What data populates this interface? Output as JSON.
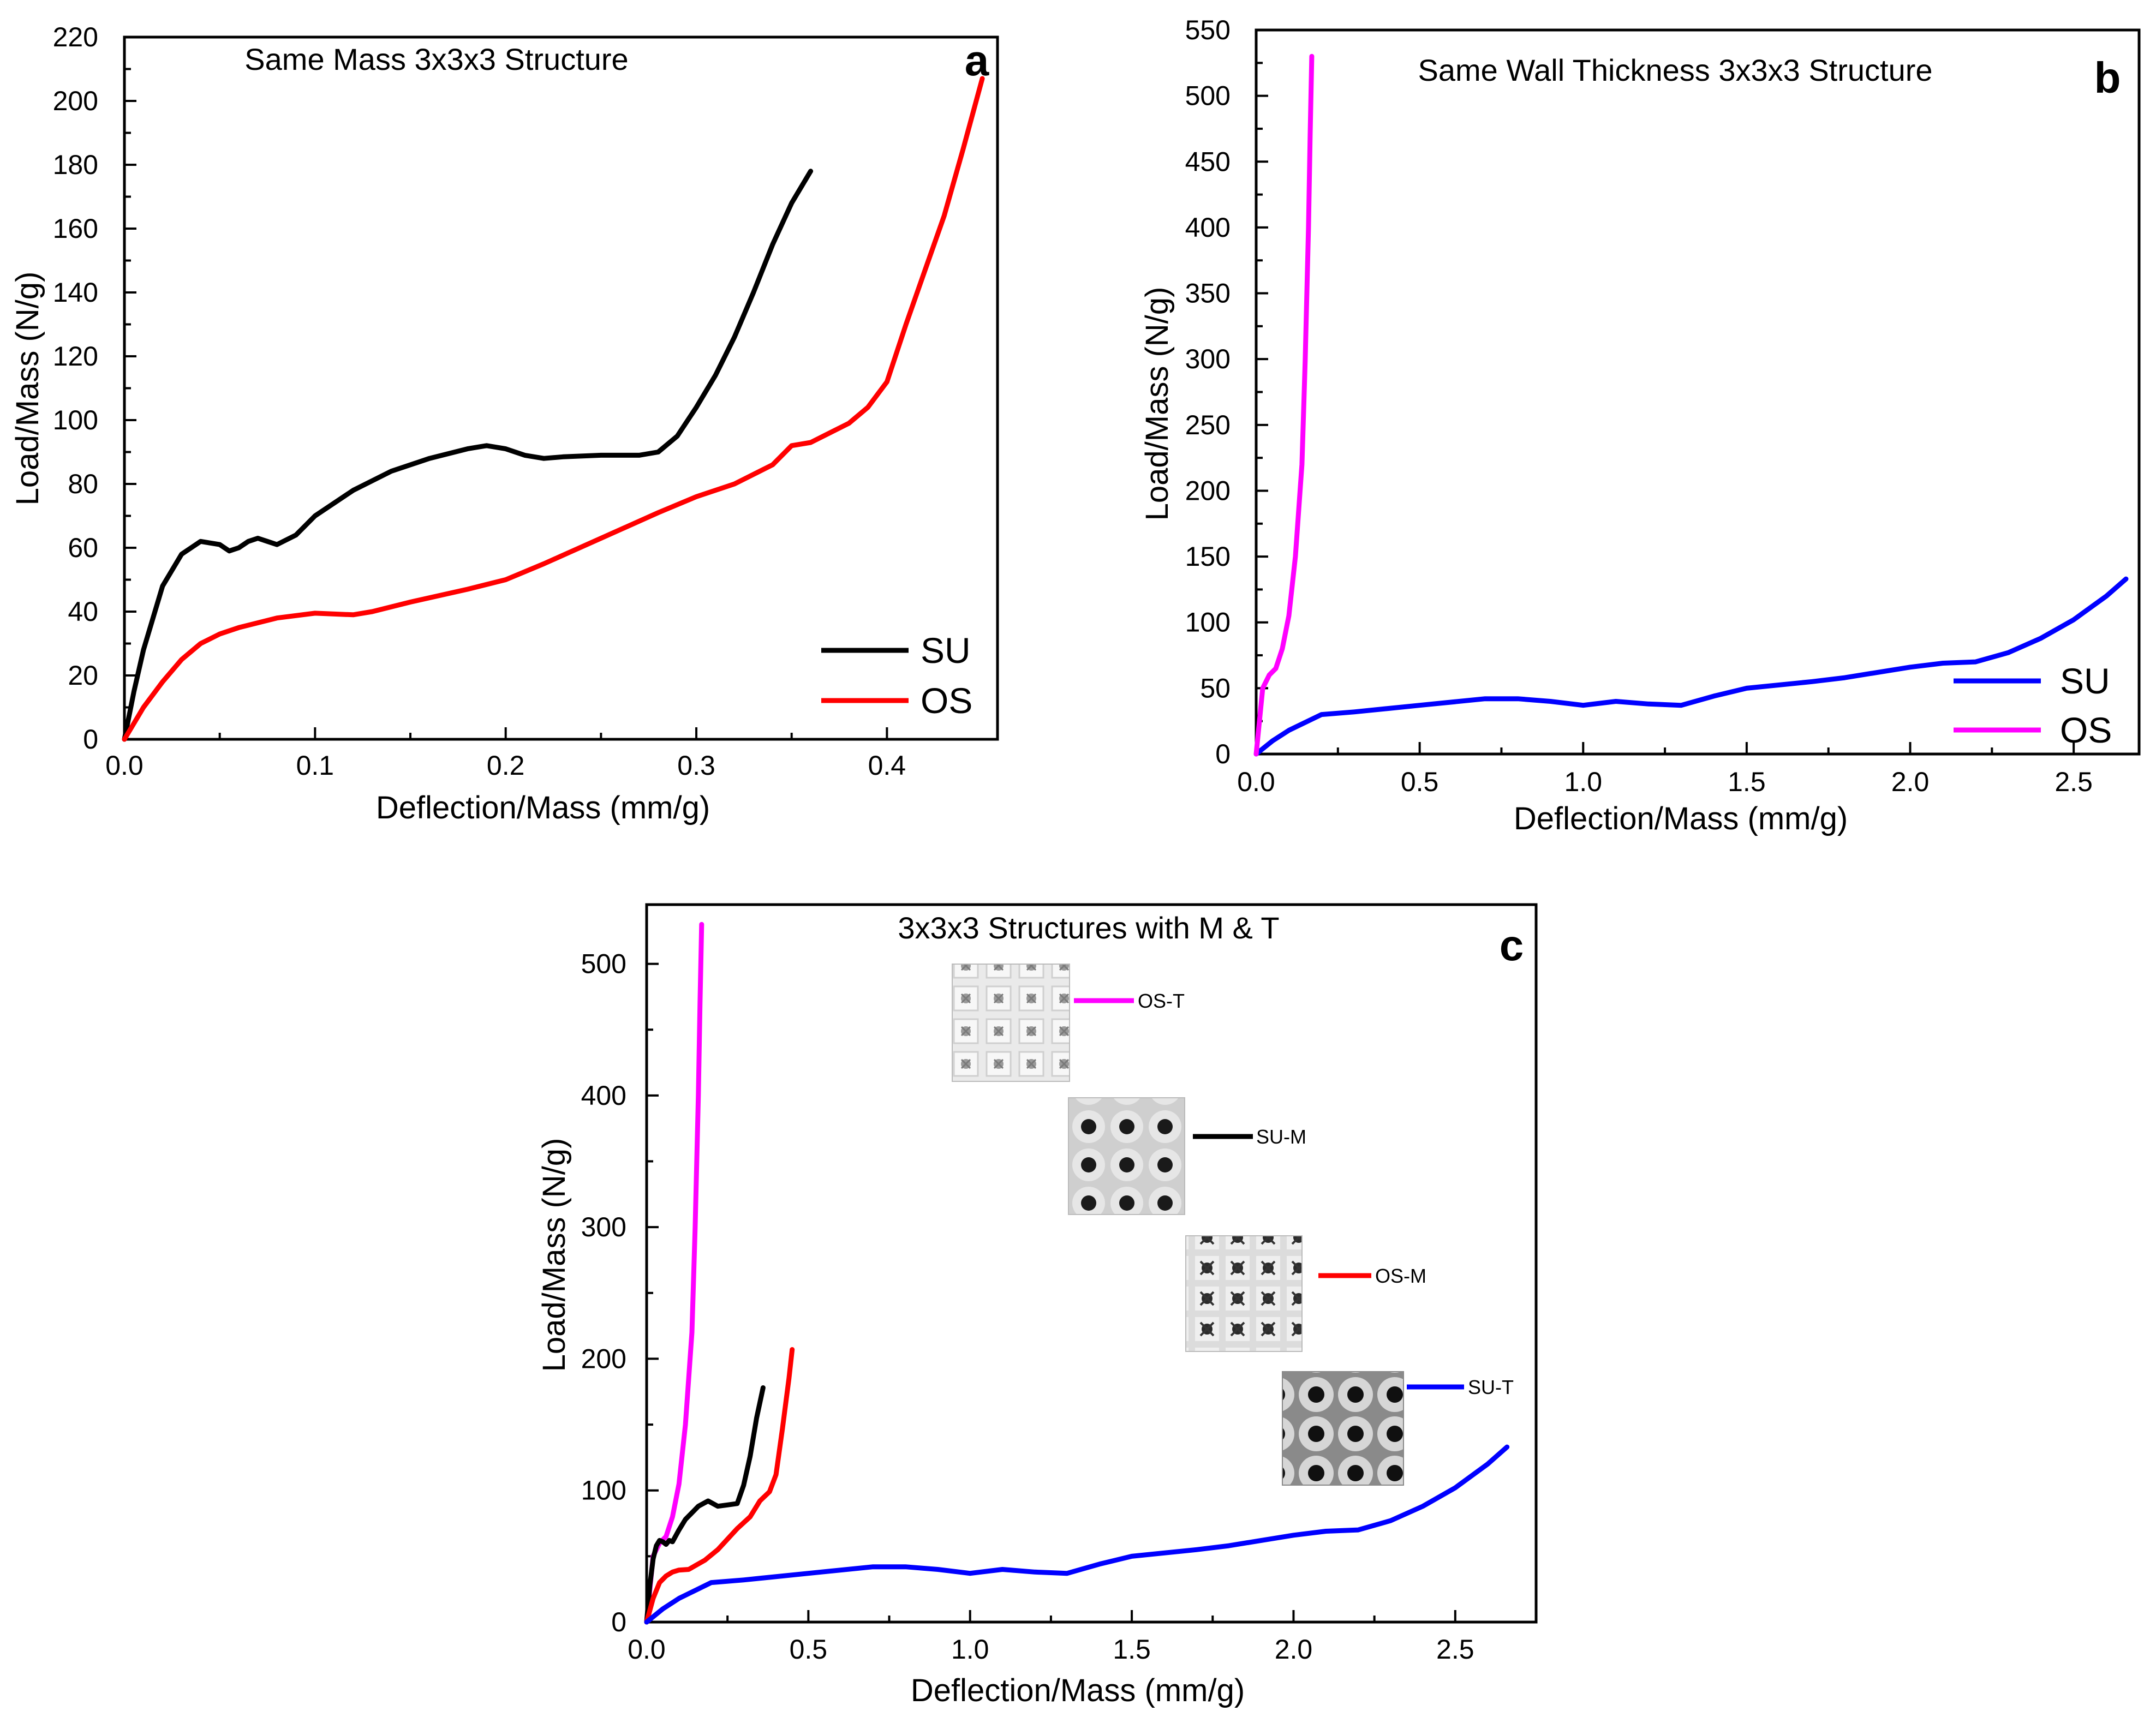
{
  "colors": {
    "su_black": "#000000",
    "os_red": "#ff0000",
    "su_blue": "#0000ff",
    "os_magenta": "#ff00ff"
  },
  "chart_data": [
    {
      "id": "a",
      "type": "line",
      "title": "Same Mass 3x3x3 Structure",
      "panel_letter": "a",
      "xlabel": "Deflection/Mass (mm/g)",
      "ylabel": "Load/Mass (N/g)",
      "xlim": [
        0,
        0.458
      ],
      "ylim": [
        0,
        220
      ],
      "xticks": [
        0,
        0.1,
        0.2,
        0.3,
        0.4
      ],
      "xtick_labels": [
        "0.0",
        "0.1",
        "0.2",
        "0.3",
        "0.4"
      ],
      "yticks": [
        0,
        20,
        40,
        60,
        80,
        100,
        120,
        140,
        160,
        180,
        200,
        220
      ],
      "ytick_labels": [
        "0",
        "20",
        "40",
        "60",
        "80",
        "100",
        "120",
        "140",
        "160",
        "180",
        "200",
        "220"
      ],
      "legend": {
        "position": "bottom-right"
      },
      "series": [
        {
          "name": "SU",
          "color": "#000000",
          "x": [
            0,
            0.005,
            0.01,
            0.02,
            0.03,
            0.04,
            0.05,
            0.055,
            0.06,
            0.065,
            0.07,
            0.075,
            0.08,
            0.09,
            0.1,
            0.12,
            0.14,
            0.16,
            0.18,
            0.19,
            0.2,
            0.21,
            0.22,
            0.23,
            0.25,
            0.27,
            0.28,
            0.29,
            0.3,
            0.31,
            0.32,
            0.33,
            0.34,
            0.35,
            0.36
          ],
          "y": [
            0,
            15,
            28,
            48,
            58,
            62,
            61,
            59,
            60,
            62,
            63,
            62,
            61,
            64,
            70,
            78,
            84,
            88,
            91,
            92,
            91,
            89,
            88,
            88.5,
            89,
            89,
            90,
            95,
            104,
            114,
            126,
            140,
            155,
            168,
            178
          ]
        },
        {
          "name": "OS",
          "color": "#ff0000",
          "x": [
            0,
            0.01,
            0.02,
            0.03,
            0.04,
            0.05,
            0.06,
            0.08,
            0.1,
            0.12,
            0.13,
            0.15,
            0.18,
            0.2,
            0.22,
            0.25,
            0.28,
            0.3,
            0.32,
            0.34,
            0.35,
            0.36,
            0.38,
            0.39,
            0.4,
            0.41,
            0.42,
            0.43,
            0.44,
            0.45
          ],
          "y": [
            0,
            10,
            18,
            25,
            30,
            33,
            35,
            38,
            39.5,
            39,
            40,
            43,
            47,
            50,
            55,
            63,
            71,
            76,
            80,
            86,
            92,
            93,
            99,
            104,
            112,
            130,
            147,
            164,
            185,
            207
          ]
        }
      ]
    },
    {
      "id": "b",
      "type": "line",
      "title": "Same Wall Thickness 3x3x3 Structure",
      "panel_letter": "b",
      "xlabel": "Deflection/Mass (mm/g)",
      "ylabel": "Load/Mass (N/g)",
      "xlim": [
        0,
        2.7
      ],
      "ylim": [
        0,
        550
      ],
      "xticks": [
        0,
        0.5,
        1.0,
        1.5,
        2.0,
        2.5
      ],
      "xtick_labels": [
        "0.0",
        "0.5",
        "1.0",
        "1.5",
        "2.0",
        "2.5"
      ],
      "yticks": [
        0,
        50,
        100,
        150,
        200,
        250,
        300,
        350,
        400,
        450,
        500,
        550
      ],
      "ytick_labels": [
        "0",
        "50",
        "100",
        "150",
        "200",
        "250",
        "300",
        "350",
        "400",
        "450",
        "500",
        "550"
      ],
      "legend": {
        "position": "bottom-right"
      },
      "series": [
        {
          "name": "SU",
          "color": "#0000ff",
          "x": [
            0,
            0.05,
            0.1,
            0.2,
            0.3,
            0.5,
            0.7,
            0.8,
            0.9,
            1.0,
            1.1,
            1.2,
            1.3,
            1.4,
            1.5,
            1.7,
            1.8,
            1.9,
            2.0,
            2.1,
            2.2,
            2.3,
            2.4,
            2.5,
            2.6,
            2.66
          ],
          "y": [
            0,
            10,
            18,
            30,
            32,
            37,
            42,
            42,
            40,
            37,
            40,
            38,
            37,
            44,
            50,
            55,
            58,
            62,
            66,
            69,
            70,
            77,
            88,
            102,
            120,
            133
          ]
        },
        {
          "name": "OS",
          "color": "#ff00ff",
          "x": [
            0,
            0.01,
            0.02,
            0.04,
            0.06,
            0.08,
            0.1,
            0.12,
            0.14,
            0.15,
            0.16,
            0.165,
            0.17
          ],
          "y": [
            0,
            25,
            50,
            60,
            65,
            80,
            105,
            150,
            220,
            300,
            400,
            470,
            530
          ]
        }
      ]
    },
    {
      "id": "c",
      "type": "line",
      "title": "3x3x3 Structures with M & T",
      "panel_letter": "c",
      "xlabel": "Deflection/Mass (mm/g)",
      "ylabel": "Load/Mass (N/g)",
      "xlim": [
        0,
        2.75
      ],
      "ylim": [
        0,
        545
      ],
      "xticks": [
        0,
        0.5,
        1.0,
        1.5,
        2.0,
        2.5
      ],
      "xtick_labels": [
        "0.0",
        "0.5",
        "1.0",
        "1.5",
        "2.0",
        "2.5"
      ],
      "yticks": [
        0,
        100,
        200,
        300,
        400,
        500
      ],
      "ytick_labels": [
        "0",
        "100",
        "200",
        "300",
        "400",
        "500"
      ],
      "legend": {
        "position": "inset-with-photos"
      },
      "series": [
        {
          "name": "OS-T",
          "color": "#ff00ff",
          "x": [
            0,
            0.01,
            0.02,
            0.04,
            0.06,
            0.08,
            0.1,
            0.12,
            0.14,
            0.15,
            0.16,
            0.165,
            0.17
          ],
          "y": [
            0,
            25,
            50,
            60,
            65,
            80,
            105,
            150,
            220,
            300,
            400,
            470,
            530
          ]
        },
        {
          "name": "SU-M",
          "color": "#000000",
          "x": [
            0,
            0.01,
            0.02,
            0.03,
            0.04,
            0.05,
            0.06,
            0.07,
            0.08,
            0.1,
            0.12,
            0.16,
            0.19,
            0.22,
            0.25,
            0.28,
            0.3,
            0.32,
            0.34,
            0.36
          ],
          "y": [
            0,
            28,
            48,
            58,
            62,
            61,
            59,
            62,
            61,
            70,
            78,
            88,
            92,
            88,
            89,
            90,
            104,
            126,
            155,
            178
          ]
        },
        {
          "name": "OS-M",
          "color": "#ff0000",
          "x": [
            0,
            0.02,
            0.04,
            0.06,
            0.08,
            0.1,
            0.13,
            0.18,
            0.22,
            0.28,
            0.32,
            0.35,
            0.38,
            0.4,
            0.42,
            0.44,
            0.45
          ],
          "y": [
            0,
            18,
            30,
            35,
            38,
            39.5,
            40,
            47,
            55,
            71,
            80,
            92,
            99,
            112,
            147,
            185,
            207
          ]
        },
        {
          "name": "SU-T",
          "color": "#0000ff",
          "x": [
            0,
            0.05,
            0.1,
            0.2,
            0.3,
            0.5,
            0.7,
            0.8,
            0.9,
            1.0,
            1.1,
            1.2,
            1.3,
            1.4,
            1.5,
            1.7,
            1.8,
            1.9,
            2.0,
            2.1,
            2.2,
            2.3,
            2.4,
            2.5,
            2.6,
            2.66
          ],
          "y": [
            0,
            10,
            18,
            30,
            32,
            37,
            42,
            42,
            40,
            37,
            40,
            38,
            37,
            44,
            50,
            55,
            58,
            62,
            66,
            69,
            70,
            77,
            88,
            102,
            120,
            133
          ]
        }
      ]
    }
  ]
}
